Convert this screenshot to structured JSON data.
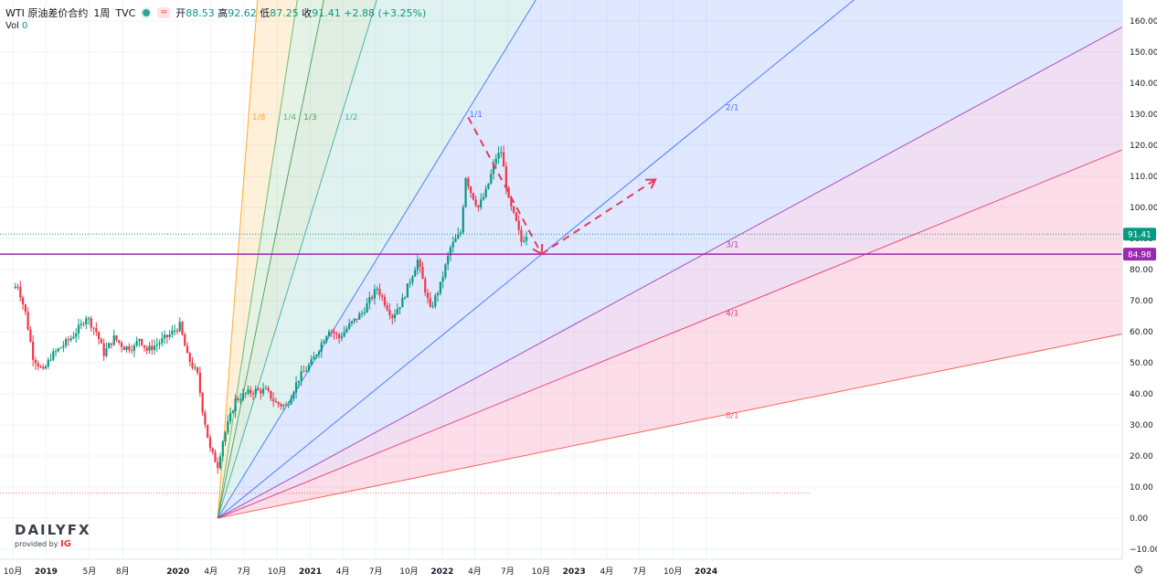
{
  "header": {
    "symbol": "WTI 原油差价合约",
    "interval": "1周",
    "source": "TVC",
    "wave_icon": "≈",
    "ohlc": {
      "open_label": "开",
      "open": "88.53",
      "high_label": "高",
      "high": "92.62",
      "low_label": "低",
      "low": "87.25",
      "close_label": "收",
      "close": "91.41",
      "change": "+2.88 (+3.25%)"
    },
    "volume_label": "Vol",
    "volume": "0"
  },
  "branding": {
    "name": "DAILYFX",
    "provided_by": "provided by",
    "partner": "IG"
  },
  "colors": {
    "up": "#089981",
    "down": "#f23645",
    "current_price": "#089981",
    "horizontal_level": "#9c27b0"
  },
  "icons": {
    "settings": "gear-icon"
  },
  "chart_data": {
    "type": "candlestick",
    "title": "",
    "ylim": [
      -12,
      165
    ],
    "y_ticks": [
      "160.00",
      "150.00",
      "140.00",
      "130.00",
      "120.00",
      "110.00",
      "100.00",
      "90.00",
      "80.00",
      "70.00",
      "60.00",
      "50.00",
      "40.00",
      "30.00",
      "20.00",
      "10.00",
      "0.00",
      "−10.00"
    ],
    "x_ticks": [
      "10月",
      "2019",
      "5月",
      "8月",
      "2020",
      "4月",
      "7月",
      "10月",
      "2021",
      "4月",
      "7月",
      "10月",
      "2022",
      "4月",
      "7月",
      "10月",
      "2023",
      "4月",
      "7月",
      "10月",
      "2024"
    ],
    "current_price": {
      "value": 91.41,
      "label": "91.41"
    },
    "horizontal_level": {
      "value": 84.98,
      "label": "84.98"
    },
    "price_path": [
      [
        "2018-10-01",
        74
      ],
      [
        "2018-10-15",
        75
      ],
      [
        "2018-11-05",
        66
      ],
      [
        "2018-11-26",
        52
      ],
      [
        "2018-12-24",
        47
      ],
      [
        "2019-01-14",
        52
      ],
      [
        "2019-02-11",
        55
      ],
      [
        "2019-03-11",
        58
      ],
      [
        "2019-04-08",
        62
      ],
      [
        "2019-04-22",
        65
      ],
      [
        "2019-05-20",
        60
      ],
      [
        "2019-06-10",
        53
      ],
      [
        "2019-07-08",
        58
      ],
      [
        "2019-08-05",
        55
      ],
      [
        "2019-09-02",
        55
      ],
      [
        "2019-09-16",
        58
      ],
      [
        "2019-10-07",
        54
      ],
      [
        "2019-11-04",
        56
      ],
      [
        "2019-12-09",
        59
      ],
      [
        "2020-01-06",
        62
      ],
      [
        "2020-01-27",
        52
      ],
      [
        "2020-02-24",
        46
      ],
      [
        "2020-03-09",
        35
      ],
      [
        "2020-03-30",
        22
      ],
      [
        "2020-04-20",
        17
      ],
      [
        "2020-05-04",
        25
      ],
      [
        "2020-06-08",
        38
      ],
      [
        "2020-07-06",
        40
      ],
      [
        "2020-08-03",
        41
      ],
      [
        "2020-08-31",
        41
      ],
      [
        "2020-09-28",
        37
      ],
      [
        "2020-10-26",
        36
      ],
      [
        "2020-11-30",
        45
      ],
      [
        "2021-01-04",
        50
      ],
      [
        "2021-02-22",
        61
      ],
      [
        "2021-03-22",
        58
      ],
      [
        "2021-04-19",
        62
      ],
      [
        "2021-05-24",
        66
      ],
      [
        "2021-07-05",
        74
      ],
      [
        "2021-08-16",
        65
      ],
      [
        "2021-09-13",
        70
      ],
      [
        "2021-10-25",
        83
      ],
      [
        "2021-11-29",
        67
      ],
      [
        "2021-12-27",
        75
      ],
      [
        "2022-01-24",
        87
      ],
      [
        "2022-02-21",
        92
      ],
      [
        "2022-03-07",
        110
      ],
      [
        "2022-03-21",
        105
      ],
      [
        "2022-04-11",
        100
      ],
      [
        "2022-05-02",
        105
      ],
      [
        "2022-05-30",
        116
      ],
      [
        "2022-06-13",
        118
      ],
      [
        "2022-07-04",
        102
      ],
      [
        "2022-07-25",
        95
      ],
      [
        "2022-08-08",
        89
      ],
      [
        "2022-08-22",
        91.41
      ]
    ],
    "gann_fan": {
      "origin": {
        "date": "2020-04-20",
        "value": 0
      },
      "reference": {
        "date": "2022-03-07",
        "value": 130
      },
      "lines": [
        {
          "label": "1/8",
          "color": "#ff9800"
        },
        {
          "label": "1/4",
          "color": "#4caf50"
        },
        {
          "label": "1/3",
          "color": "#388e3c"
        },
        {
          "label": "1/2",
          "color": "#26a69a"
        },
        {
          "label": "1/1",
          "color": "#2962ff"
        },
        {
          "label": "2/1",
          "color": "#2962ff"
        },
        {
          "label": "3/1",
          "color": "#9c27b0"
        },
        {
          "label": "4/1",
          "color": "#e91e63"
        },
        {
          "label": "8/1",
          "color": "#f44336"
        }
      ]
    },
    "annotations": [
      {
        "type": "dashed-arrow",
        "color": "#e83a5a",
        "from": [
          "2022-03-14",
          129
        ],
        "to": [
          "2022-10-03",
          85
        ]
      },
      {
        "type": "dashed-arrow",
        "color": "#e83a5a",
        "from": [
          "2022-10-03",
          85
        ],
        "to": [
          "2023-08-14",
          109
        ]
      }
    ]
  }
}
